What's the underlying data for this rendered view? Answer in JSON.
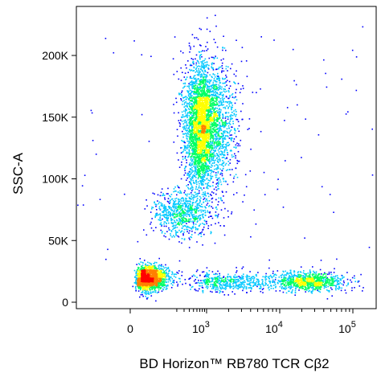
{
  "chart_data": {
    "type": "scatter",
    "title": "",
    "xlabel": "BD Horizon™ RB780 TCR Cβ2",
    "ylabel": "SSC-A",
    "x_scale": "biexponential",
    "y_scale": "linear",
    "xlim": [
      -400,
      130000
    ],
    "ylim": [
      -5000,
      240000
    ],
    "grid": false,
    "legend": "none",
    "density_colormap": [
      "#0000ff",
      "#00c8ff",
      "#00ff64",
      "#ffff00",
      "#ff8000",
      "#ff0000"
    ],
    "x_ticks": [
      {
        "value": 0,
        "base": "0",
        "exp": ""
      },
      {
        "value": 1000,
        "base": "10",
        "exp": "3"
      },
      {
        "value": 10000,
        "base": "10",
        "exp": "4"
      },
      {
        "value": 100000,
        "base": "10",
        "exp": "5"
      }
    ],
    "y_ticks": [
      {
        "value": 0,
        "label": "0"
      },
      {
        "value": 50000,
        "label": "50K"
      },
      {
        "value": 100000,
        "label": "100K"
      },
      {
        "value": 150000,
        "label": "150K"
      },
      {
        "value": 200000,
        "label": "200K"
      }
    ],
    "series": [
      {
        "x_center": 800,
        "x_spread_decades": 0.22,
        "y_center": 140000,
        "y_sd": 28000,
        "count": 3200
      },
      {
        "x_center": 900,
        "x_spread_decades": 0.18,
        "y_center": 155000,
        "y_sd": 15000,
        "count": 600
      },
      {
        "x_center": 250,
        "x_spread_decades": 0.35,
        "y_center": 72000,
        "y_sd": 9000,
        "count": 700
      },
      {
        "x_center": 30,
        "x_spread_decades": 0.3,
        "y_center": 20000,
        "y_sd": 5000,
        "count": 1600
      },
      {
        "x_center": 2000,
        "x_spread_decades": 0.3,
        "y_center": 17000,
        "y_sd": 4000,
        "count": 500
      },
      {
        "x_center": 25000,
        "x_spread_decades": 0.25,
        "y_center": 17000,
        "y_sd": 4000,
        "count": 900
      }
    ]
  }
}
